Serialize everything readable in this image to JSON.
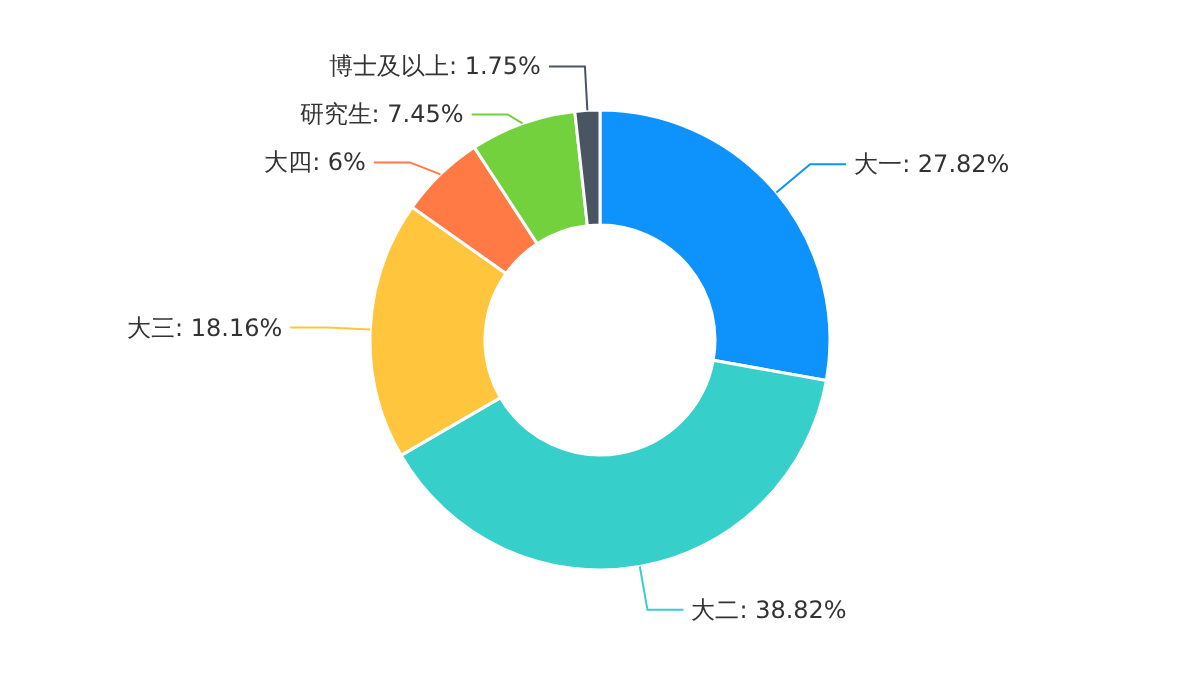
{
  "chart_data": {
    "type": "donut",
    "categories": [
      "大一",
      "大二",
      "大三",
      "大四",
      "研究生",
      "博士及以上"
    ],
    "values": [
      27.82,
      38.82,
      18.16,
      6,
      7.45,
      1.75
    ],
    "colors": [
      "#0e92fb",
      "#36cfc9",
      "#ffc53d",
      "#ff7a45",
      "#73d13d",
      "#4a5563"
    ],
    "value_labels": [
      ": 27.82%",
      ": 38.82%",
      ": 18.16%",
      ": 6%",
      ": 7.45%",
      ": 1.75%"
    ]
  }
}
